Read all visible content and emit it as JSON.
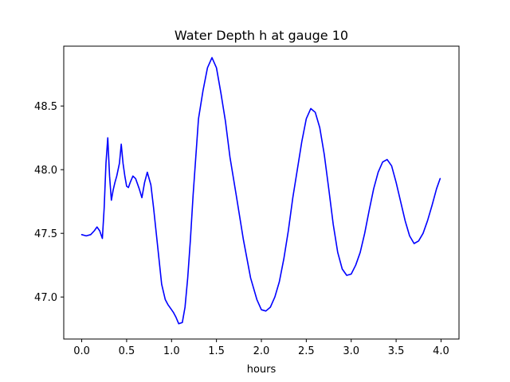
{
  "chart_data": {
    "type": "line",
    "title": "Water Depth h at gauge 10",
    "xlabel": "hours",
    "ylabel": "",
    "xlim": [
      -0.2,
      4.2
    ],
    "ylim": [
      46.67,
      48.97
    ],
    "grid": false,
    "x_ticks": [
      0.0,
      0.5,
      1.0,
      1.5,
      2.0,
      2.5,
      3.0,
      3.5,
      4.0
    ],
    "x_tick_labels": [
      "0.0",
      "0.5",
      "1.0",
      "1.5",
      "2.0",
      "2.5",
      "3.0",
      "3.5",
      "4.0"
    ],
    "y_ticks": [
      47.0,
      47.5,
      48.0,
      48.5
    ],
    "y_tick_labels": [
      "47.0",
      "47.5",
      "48.0",
      "48.5"
    ],
    "line_color": "#0000ff",
    "series": [
      {
        "x": [
          0.0,
          0.05,
          0.1,
          0.14,
          0.17,
          0.2,
          0.23,
          0.25,
          0.27,
          0.29,
          0.31,
          0.33,
          0.35,
          0.37,
          0.39,
          0.42,
          0.44,
          0.46,
          0.48,
          0.5,
          0.52,
          0.54,
          0.57,
          0.6,
          0.64,
          0.67,
          0.7,
          0.73,
          0.77,
          0.8,
          0.83,
          0.86,
          0.89,
          0.93,
          0.96,
          0.99,
          1.02,
          1.05,
          1.08,
          1.12,
          1.15,
          1.18,
          1.21,
          1.24,
          1.27,
          1.3,
          1.35,
          1.4,
          1.45,
          1.5,
          1.55,
          1.6,
          1.65,
          1.72,
          1.8,
          1.88,
          1.95,
          2.0,
          2.05,
          2.1,
          2.15,
          2.2,
          2.25,
          2.3,
          2.35,
          2.4,
          2.45,
          2.5,
          2.55,
          2.6,
          2.65,
          2.7,
          2.75,
          2.8,
          2.85,
          2.9,
          2.95,
          3.0,
          3.05,
          3.1,
          3.15,
          3.2,
          3.25,
          3.3,
          3.35,
          3.4,
          3.45,
          3.5,
          3.55,
          3.6,
          3.65,
          3.7,
          3.75,
          3.8,
          3.85,
          3.9,
          3.95,
          3.99
        ],
        "y": [
          47.49,
          47.48,
          47.49,
          47.52,
          47.55,
          47.52,
          47.46,
          47.7,
          48.05,
          48.25,
          47.95,
          47.76,
          47.84,
          47.9,
          47.95,
          48.05,
          48.2,
          48.05,
          47.95,
          47.87,
          47.86,
          47.9,
          47.95,
          47.93,
          47.85,
          47.78,
          47.9,
          47.98,
          47.88,
          47.7,
          47.5,
          47.3,
          47.1,
          46.98,
          46.94,
          46.91,
          46.88,
          46.84,
          46.79,
          46.8,
          46.92,
          47.15,
          47.45,
          47.8,
          48.1,
          48.4,
          48.62,
          48.8,
          48.88,
          48.8,
          48.6,
          48.38,
          48.1,
          47.8,
          47.45,
          47.15,
          46.98,
          46.9,
          46.89,
          46.92,
          47.0,
          47.12,
          47.3,
          47.52,
          47.78,
          48.0,
          48.22,
          48.4,
          48.48,
          48.45,
          48.33,
          48.12,
          47.85,
          47.57,
          47.35,
          47.22,
          47.17,
          47.18,
          47.25,
          47.35,
          47.5,
          47.68,
          47.85,
          47.98,
          48.06,
          48.08,
          48.03,
          47.9,
          47.75,
          47.6,
          47.48,
          47.42,
          47.44,
          47.5,
          47.6,
          47.72,
          47.85,
          47.93
        ]
      }
    ]
  }
}
